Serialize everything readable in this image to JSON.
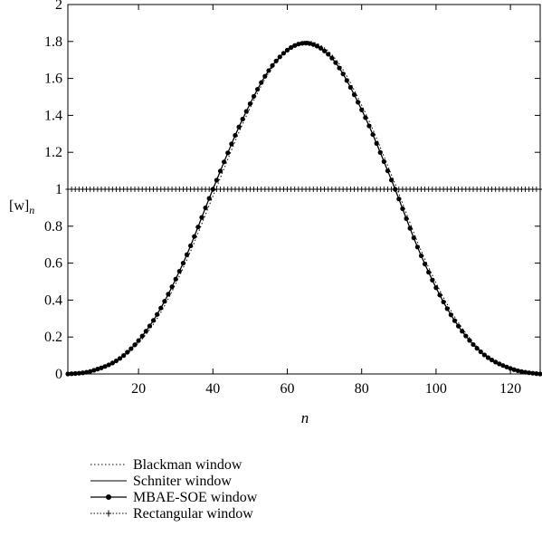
{
  "chart_data": {
    "type": "line",
    "title": "",
    "xlabel": "n",
    "ylabel_main": "[w]",
    "ylabel_sub": "n",
    "xlim": [
      1,
      128
    ],
    "ylim": [
      0,
      2
    ],
    "x_ticks": [
      20,
      40,
      60,
      80,
      100,
      120
    ],
    "x_tick_labels": [
      "20",
      "40",
      "60",
      "80",
      "100",
      "120"
    ],
    "y_ticks": [
      0,
      0.2,
      0.4,
      0.6,
      0.8,
      1,
      1.2,
      1.4,
      1.6,
      1.8,
      2
    ],
    "y_tick_labels": [
      "0",
      "0.2",
      "0.4",
      "0.6",
      "0.8",
      "1",
      "1.2",
      "1.4",
      "1.6",
      "1.8",
      "2"
    ],
    "grid": false,
    "legend_position": "below-left",
    "x": [
      1,
      8,
      16,
      24,
      32,
      40,
      48,
      56,
      64,
      72,
      80,
      88,
      96,
      104,
      112,
      120,
      128
    ],
    "series": [
      {
        "name": "Blackman window",
        "style": "dotted",
        "values": [
          0.0,
          0.02,
          0.1,
          0.28,
          0.59,
          0.98,
          1.37,
          1.67,
          1.8,
          1.72,
          1.44,
          1.06,
          0.65,
          0.33,
          0.12,
          0.03,
          0.0
        ]
      },
      {
        "name": "Schniter window",
        "style": "solid",
        "values": [
          0.0,
          0.02,
          0.1,
          0.29,
          0.6,
          1.0,
          1.38,
          1.67,
          1.79,
          1.71,
          1.43,
          1.05,
          0.64,
          0.32,
          0.12,
          0.03,
          0.0
        ]
      },
      {
        "name": "MBAE-SOE window",
        "style": "solid-dot",
        "values": [
          0.0,
          0.02,
          0.1,
          0.29,
          0.6,
          1.0,
          1.38,
          1.67,
          1.79,
          1.71,
          1.43,
          1.05,
          0.64,
          0.32,
          0.12,
          0.03,
          0.0
        ]
      },
      {
        "name": "Rectangular window",
        "style": "dotted-plus",
        "values": [
          1,
          1,
          1,
          1,
          1,
          1,
          1,
          1,
          1,
          1,
          1,
          1,
          1,
          1,
          1,
          1,
          1
        ]
      }
    ]
  }
}
